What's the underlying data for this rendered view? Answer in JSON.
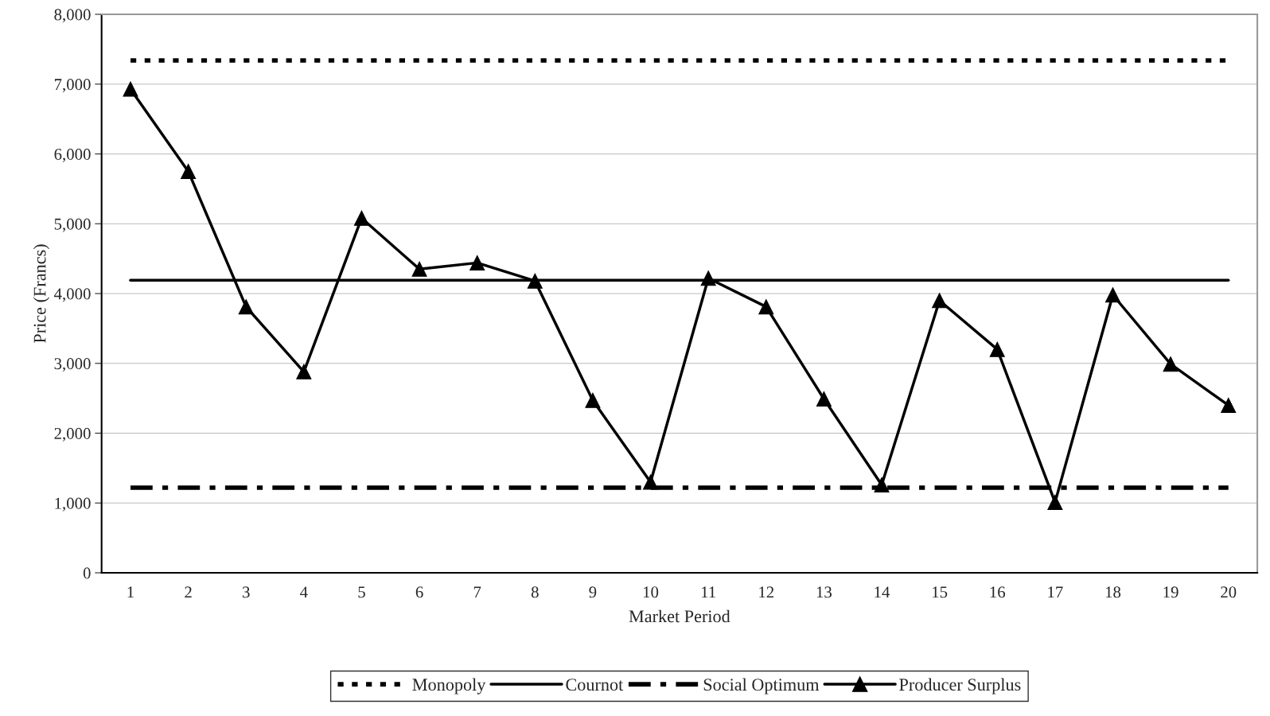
{
  "chart_data": {
    "type": "line",
    "xlabel": "Market Period",
    "ylabel": "Price (Francs)",
    "categories": [
      "1",
      "2",
      "3",
      "4",
      "5",
      "6",
      "7",
      "8",
      "9",
      "10",
      "11",
      "12",
      "13",
      "14",
      "15",
      "16",
      "17",
      "18",
      "19",
      "20"
    ],
    "series": [
      {
        "name": "Monopoly",
        "color": "#000000",
        "line_style": "dotted",
        "marker": "none",
        "values": [
          7340,
          7340,
          7340,
          7340,
          7340,
          7340,
          7340,
          7340,
          7340,
          7340,
          7340,
          7340,
          7340,
          7340,
          7340,
          7340,
          7340,
          7340,
          7340,
          7340
        ]
      },
      {
        "name": "Cournot",
        "color": "#000000",
        "line_style": "solid",
        "marker": "none",
        "values": [
          4190,
          4190,
          4190,
          4190,
          4190,
          4190,
          4190,
          4190,
          4190,
          4190,
          4190,
          4190,
          4190,
          4190,
          4190,
          4190,
          4190,
          4190,
          4190,
          4190
        ]
      },
      {
        "name": "Social Optimum",
        "color": "#000000",
        "line_style": "dashdot",
        "marker": "none",
        "values": [
          1220,
          1220,
          1220,
          1220,
          1220,
          1220,
          1220,
          1220,
          1220,
          1220,
          1220,
          1220,
          1220,
          1220,
          1220,
          1220,
          1220,
          1220,
          1220,
          1220
        ]
      },
      {
        "name": "Producer Surplus",
        "color": "#000000",
        "line_style": "solid",
        "marker": "triangle",
        "values": [
          6930,
          5750,
          3810,
          2880,
          5080,
          4350,
          4440,
          4180,
          2470,
          1300,
          4220,
          3810,
          2490,
          1260,
          3900,
          3200,
          1010,
          3980,
          2990,
          2400
        ]
      }
    ],
    "ylim": [
      0,
      8000
    ],
    "yticks": [
      {
        "value": 0,
        "label": "0"
      },
      {
        "value": 1000,
        "label": "1,000"
      },
      {
        "value": 2000,
        "label": "2,000"
      },
      {
        "value": 3000,
        "label": "3,000"
      },
      {
        "value": 4000,
        "label": "4,000"
      },
      {
        "value": 5000,
        "label": "5,000"
      },
      {
        "value": 6000,
        "label": "6,000"
      },
      {
        "value": 7000,
        "label": "7,000"
      },
      {
        "value": 8000,
        "label": "8,000"
      }
    ],
    "grid": "y",
    "legend": "bottom"
  }
}
